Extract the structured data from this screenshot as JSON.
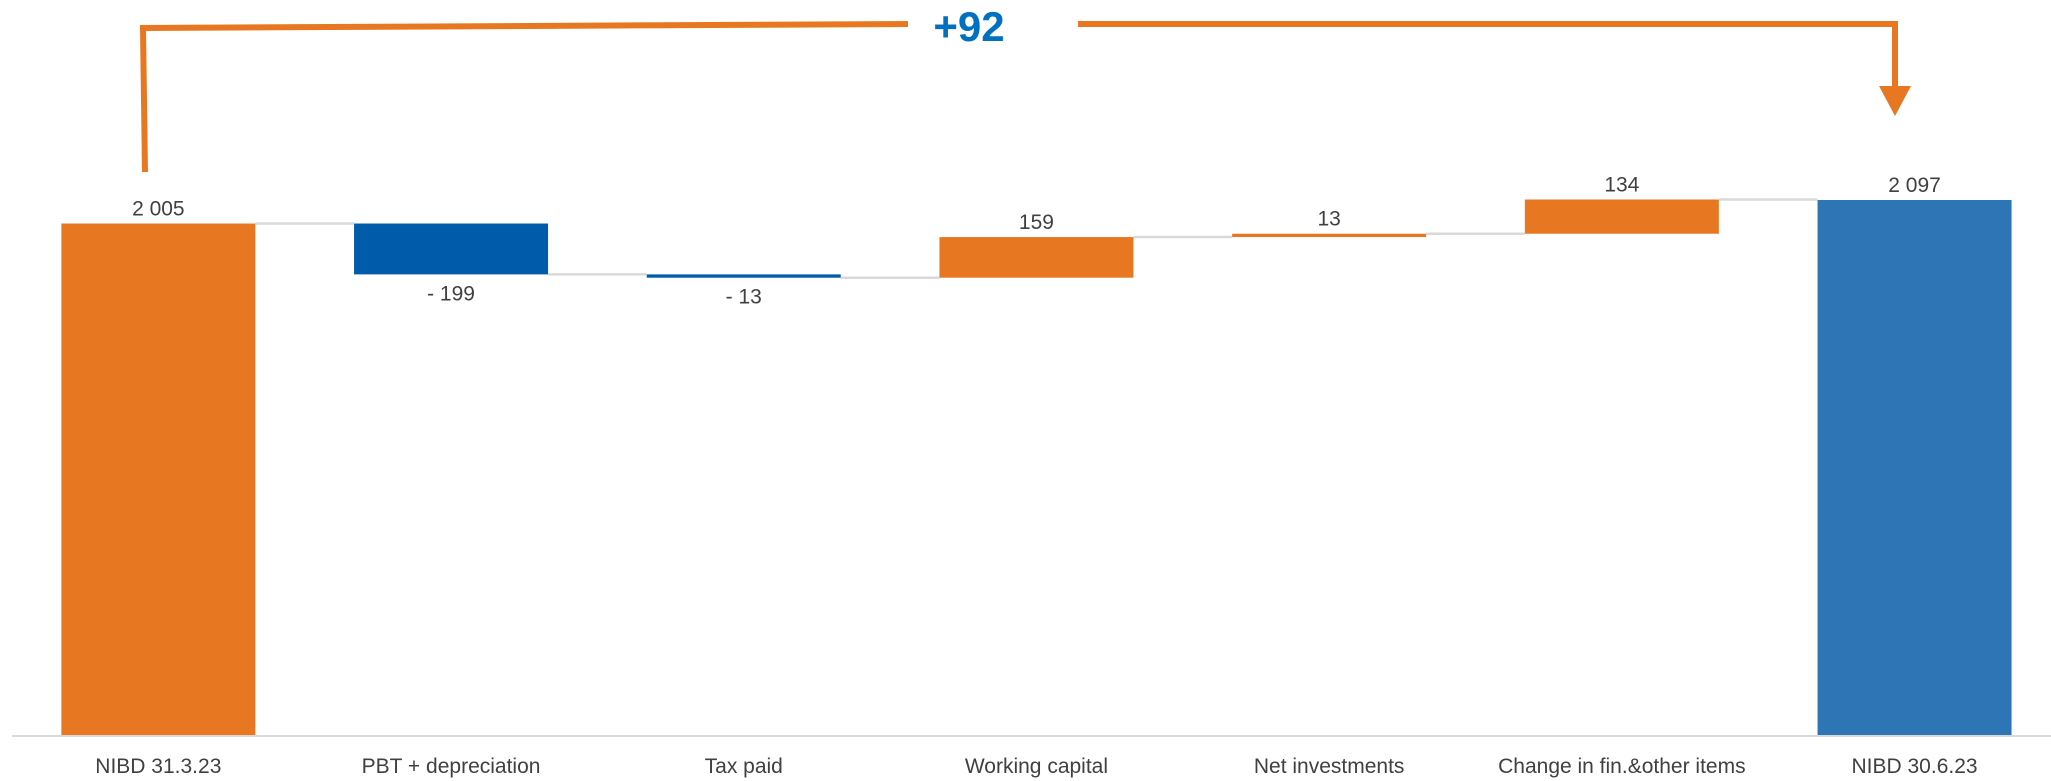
{
  "chart_data": {
    "type": "bar",
    "subtype": "waterfall",
    "categories": [
      "NIBD 31.3.23",
      "PBT + depreciation",
      "Tax paid",
      "Working capital",
      "Net investments",
      "Change in fin.&other items",
      "NIBD 30.6.23"
    ],
    "values": [
      2005,
      -199,
      -13,
      159,
      13,
      134,
      2097
    ],
    "kinds": [
      "total",
      "delta",
      "delta",
      "delta",
      "delta",
      "delta",
      "total"
    ],
    "data_labels": [
      "2 005",
      "- 199",
      "- 13",
      "159",
      "13",
      "134",
      "2 097"
    ],
    "ylim": [
      0,
      2097
    ],
    "grid": false,
    "legend": "none",
    "annotation": {
      "text": "+92",
      "from": "NIBD 31.3.23",
      "to": "NIBD 30.6.23"
    },
    "title": "",
    "xlabel": "",
    "ylabel": ""
  },
  "colors": {
    "start_total": "#E87722",
    "end_total": "#2E75B6",
    "increase": "#E87722",
    "decrease": "#005BAB",
    "bracket": "#E87722",
    "bracket_text": "#0070C0",
    "connector": "#D9D9D9",
    "axis": "#D9D9D9",
    "label": "#404040"
  }
}
